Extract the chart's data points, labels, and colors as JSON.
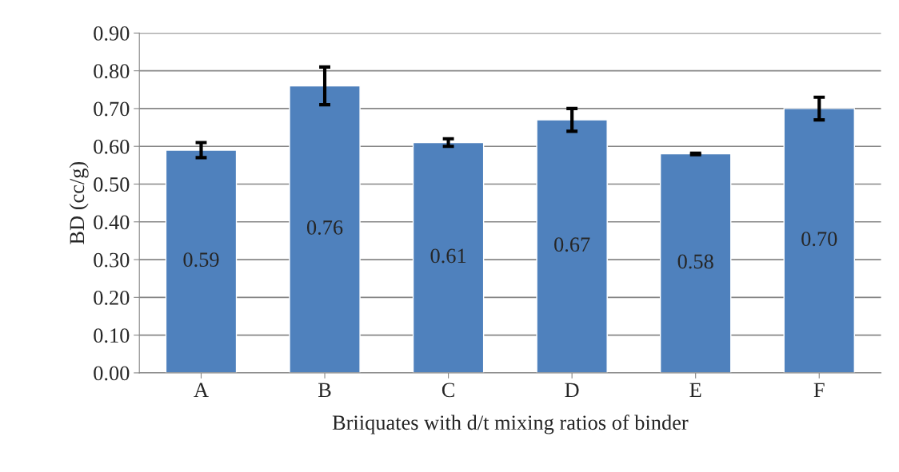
{
  "chart_data": {
    "type": "bar",
    "xlabel": "Briiquates with d/t mixing ratios of binder",
    "ylabel": "BD (cc/g)",
    "categories": [
      "A",
      "B",
      "C",
      "D",
      "E",
      "F"
    ],
    "values": [
      0.59,
      0.76,
      0.61,
      0.67,
      0.58,
      0.7
    ],
    "value_labels": [
      "0.59",
      "0.76",
      "0.61",
      "0.67",
      "0.58",
      "0.70"
    ],
    "errors": [
      0.02,
      0.05,
      0.01,
      0.03,
      0.002,
      0.03
    ],
    "color": "#4f81bd",
    "ylim": [
      0,
      0.9
    ],
    "yticks": [
      {
        "value": 0,
        "label": "0.00"
      },
      {
        "value": 0.1,
        "label": "0.10"
      },
      {
        "value": 0.2,
        "label": "0.20"
      },
      {
        "value": 0.3,
        "label": "0.30"
      },
      {
        "value": 0.4,
        "label": "0.40"
      },
      {
        "value": 0.5,
        "label": "0.50"
      },
      {
        "value": 0.6,
        "label": "0.60"
      },
      {
        "value": 0.7,
        "label": "0.70"
      },
      {
        "value": 0.8,
        "label": "0.80"
      },
      {
        "value": 0.9,
        "label": "0.90"
      }
    ],
    "grid": "y"
  }
}
